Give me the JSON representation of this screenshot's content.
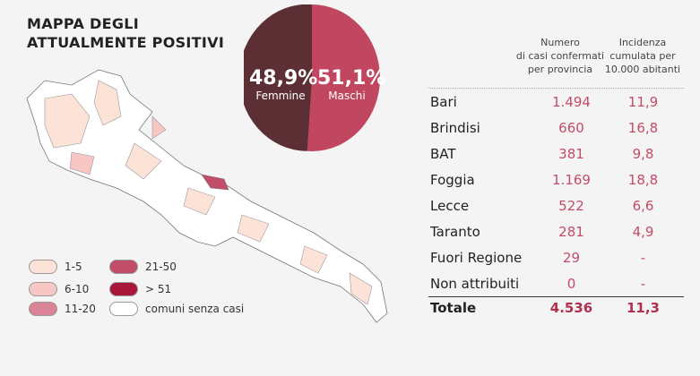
{
  "title_lines": [
    "MAPPA DEGLI",
    "ATTUALMENTE POSITIVI"
  ],
  "pie": {
    "female": {
      "value": "48,9%",
      "label": "Femmine",
      "color": "#c0475f"
    },
    "male": {
      "value": "51,1%",
      "label": "Maschi",
      "color": "#5c2f35"
    }
  },
  "legend": [
    {
      "label": "1-5",
      "color": "#fde2d8"
    },
    {
      "label": "6-10",
      "color": "#f9c6c6"
    },
    {
      "label": "11-20",
      "color": "#d98397"
    },
    {
      "label": "21-50",
      "color": "#c24d68"
    },
    {
      "label": "> 51",
      "color": "#a8173a"
    },
    {
      "label": "comuni senza casi",
      "color": "#ffffff"
    }
  ],
  "table": {
    "header_lines": [
      [
        "Numero",
        "di casi confermati",
        "per provincia"
      ],
      [
        "Incidenza",
        "cumulata per",
        "10.000 abitanti"
      ]
    ],
    "rows": [
      [
        "Bari",
        "1.494",
        "11,9"
      ],
      [
        "Brindisi",
        "660",
        "16,8"
      ],
      [
        "BAT",
        "381",
        "9,8"
      ],
      [
        "Foggia",
        "1.169",
        "18,8"
      ],
      [
        "Lecce",
        "522",
        "6,6"
      ],
      [
        "Taranto",
        "281",
        "4,9"
      ],
      [
        "Fuori Regione",
        "29",
        "-"
      ],
      [
        "Non attribuiti",
        "0",
        "-"
      ]
    ],
    "total": [
      "Totale",
      "4.536",
      "11,3"
    ]
  }
}
